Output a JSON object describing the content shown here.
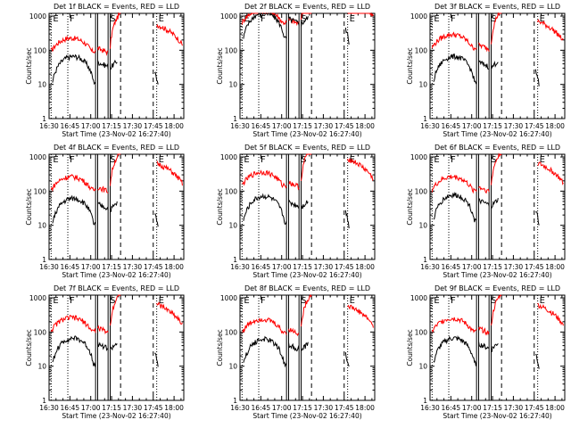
{
  "chart_data": {
    "type": "line",
    "layout": "3x3 grid of log-scale count-rate plots",
    "xlabel": "Start Time (23-Nov-02 16:27:40)",
    "ylabel": "Counts/sec",
    "xlim_minutes_after_1630": [
      0,
      97
    ],
    "ylim": [
      1,
      1200
    ],
    "x_ticks": [
      "16:30",
      "16:45",
      "17:00",
      "17:15",
      "17:30",
      "17:45",
      "18:00"
    ],
    "x_tick_minutes": [
      0,
      15,
      30,
      45,
      60,
      75,
      90
    ],
    "y_ticks": [
      "1",
      "10",
      "100",
      "1000"
    ],
    "y_tick_values": [
      1,
      10,
      100,
      1000
    ],
    "marker_labels": [
      "E",
      "F",
      "S",
      "E"
    ],
    "series_colors": {
      "events": "#000000",
      "lld": "#ff0000"
    },
    "panels": [
      {
        "title": "Det 1f BLACK = Events, RED = LLD",
        "lld_base": 95,
        "evt_base": 30
      },
      {
        "title": "Det 2f BLACK = Events, RED = LLD",
        "lld_base": 650,
        "evt_base": 560
      },
      {
        "title": "Det 3f BLACK = Events, RED = LLD",
        "lld_base": 120,
        "evt_base": 30
      },
      {
        "title": "Det 4f BLACK = Events, RED = LLD",
        "lld_base": 110,
        "evt_base": 28
      },
      {
        "title": "Det 5f BLACK = Events, RED = LLD",
        "lld_base": 150,
        "evt_base": 32
      },
      {
        "title": "Det 6f BLACK = Events, RED = LLD",
        "lld_base": 110,
        "evt_base": 35
      },
      {
        "title": "Det 7f BLACK = Events, RED = LLD",
        "lld_base": 110,
        "evt_base": 30
      },
      {
        "title": "Det 8f BLACK = Events, RED = LLD",
        "lld_base": 100,
        "evt_base": 28
      },
      {
        "title": "Det 9f BLACK = Events, RED = LLD",
        "lld_base": 105,
        "evt_base": 30
      }
    ]
  }
}
